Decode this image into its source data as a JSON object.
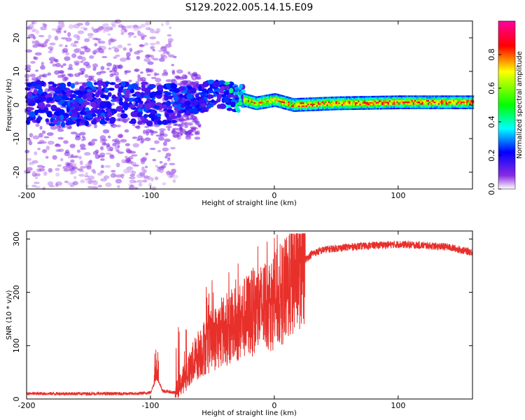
{
  "title": "S129.2022.005.14.15.E09",
  "chart_data": [
    {
      "type": "heatmap",
      "xlabel": "Height of straight line (km)",
      "ylabel": "Frequency (Hz)",
      "xlim": [
        -200,
        160
      ],
      "ylim": [
        -25,
        25
      ],
      "xticks": [
        -200,
        -100,
        0,
        100
      ],
      "yticks": [
        -20,
        -10,
        0,
        10,
        20
      ],
      "colorbar": {
        "label": "Normalized spectral amplitude",
        "range": [
          0,
          1
        ],
        "ticks": [
          "0.0",
          "0.2",
          "0.4",
          "0.6",
          "0.8"
        ],
        "colors": [
          "#ffffff",
          "#8a2be2",
          "#0000ff",
          "#00ffff",
          "#00ff00",
          "#ffff00",
          "#ff0000",
          "#ff00a0"
        ]
      },
      "description_points": [
        {
          "x": -180,
          "y": 0.0
        },
        {
          "x": -150,
          "y": 0.5
        },
        {
          "x": -120,
          "y": 1.0
        },
        {
          "x": -90,
          "y": 0.0
        },
        {
          "x": -60,
          "y": 2.0
        },
        {
          "x": -45,
          "y": 3.5
        },
        {
          "x": -30,
          "y": 2.0
        },
        {
          "x": -15,
          "y": 0.5
        },
        {
          "x": 0,
          "y": 1.5
        },
        {
          "x": 15,
          "y": 0.0
        },
        {
          "x": 50,
          "y": 0.5
        },
        {
          "x": 100,
          "y": 0.8
        },
        {
          "x": 160,
          "y": 0.8
        }
      ]
    },
    {
      "type": "line",
      "xlabel": "Height of straight line (km)",
      "ylabel": "SNR (10 * v/v)",
      "xlim": [
        -200,
        160
      ],
      "ylim": [
        0,
        315
      ],
      "xticks": [
        -200,
        -100,
        0,
        100
      ],
      "yticks": [
        0,
        100,
        200,
        300
      ],
      "color": "#e8302b",
      "envelope": [
        {
          "x": -200,
          "y": 10
        },
        {
          "x": -110,
          "y": 10
        },
        {
          "x": -100,
          "y": 12
        },
        {
          "x": -95,
          "y": 40
        },
        {
          "x": -90,
          "y": 15
        },
        {
          "x": -80,
          "y": 12
        },
        {
          "x": -70,
          "y": 50
        },
        {
          "x": -60,
          "y": 90
        },
        {
          "x": -50,
          "y": 110
        },
        {
          "x": -40,
          "y": 130
        },
        {
          "x": -30,
          "y": 140
        },
        {
          "x": -20,
          "y": 160
        },
        {
          "x": -10,
          "y": 170
        },
        {
          "x": 0,
          "y": 185
        },
        {
          "x": 10,
          "y": 205
        },
        {
          "x": 20,
          "y": 250
        },
        {
          "x": 30,
          "y": 272
        },
        {
          "x": 40,
          "y": 280
        },
        {
          "x": 60,
          "y": 285
        },
        {
          "x": 80,
          "y": 288
        },
        {
          "x": 100,
          "y": 290
        },
        {
          "x": 120,
          "y": 288
        },
        {
          "x": 140,
          "y": 285
        },
        {
          "x": 160,
          "y": 275
        }
      ]
    }
  ]
}
